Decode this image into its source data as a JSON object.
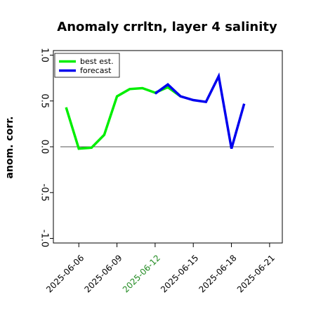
{
  "chart_data": {
    "type": "line",
    "title": "Anomaly crrltn, layer 4 salinity",
    "ylabel": "anom. corr.",
    "xlabel": "",
    "ylim": [
      -1.05,
      1.05
    ],
    "xlim": [
      "2025-06-04",
      "2025-06-22"
    ],
    "grid": false,
    "legend_position": "top-left",
    "yticks": [
      -1.0,
      -0.5,
      0.0,
      0.5,
      1.0
    ],
    "ytick_labels": [
      "-1.0",
      "-0.5",
      "0.0",
      "0.5",
      "1.0"
    ],
    "xticks": [
      "2025-06-06",
      "2025-06-09",
      "2025-06-12",
      "2025-06-15",
      "2025-06-18",
      "2025-06-21"
    ],
    "xtick_labels": [
      "2025-06-06",
      "2025-06-09",
      "2025-06-12",
      "2025-06-15",
      "2025-06-18",
      "2025-06-21"
    ],
    "xtick_colors": [
      "#000000",
      "#000000",
      "#228b22",
      "#000000",
      "#000000",
      "#000000"
    ],
    "reference_line": 0.0,
    "series": [
      {
        "name": "best est.",
        "color": "#00ee00",
        "points": [
          {
            "x": "2025-06-05",
            "y": 0.43
          },
          {
            "x": "2025-06-06",
            "y": -0.02
          },
          {
            "x": "2025-06-07",
            "y": -0.01
          },
          {
            "x": "2025-06-08",
            "y": 0.13
          },
          {
            "x": "2025-06-09",
            "y": 0.55
          },
          {
            "x": "2025-06-10",
            "y": 0.63
          },
          {
            "x": "2025-06-11",
            "y": 0.64
          },
          {
            "x": "2025-06-12",
            "y": 0.59
          },
          {
            "x": "2025-06-13",
            "y": 0.65
          },
          {
            "x": "2025-06-14",
            "y": 0.55
          }
        ]
      },
      {
        "name": "forecast",
        "color": "#0000ee",
        "points": [
          {
            "x": "2025-06-12",
            "y": 0.58
          },
          {
            "x": "2025-06-13",
            "y": 0.68
          },
          {
            "x": "2025-06-14",
            "y": 0.55
          },
          {
            "x": "2025-06-15",
            "y": 0.51
          },
          {
            "x": "2025-06-16",
            "y": 0.49
          },
          {
            "x": "2025-06-17",
            "y": 0.77
          },
          {
            "x": "2025-06-18",
            "y": -0.02
          },
          {
            "x": "2025-06-19",
            "y": 0.47
          }
        ]
      }
    ]
  }
}
